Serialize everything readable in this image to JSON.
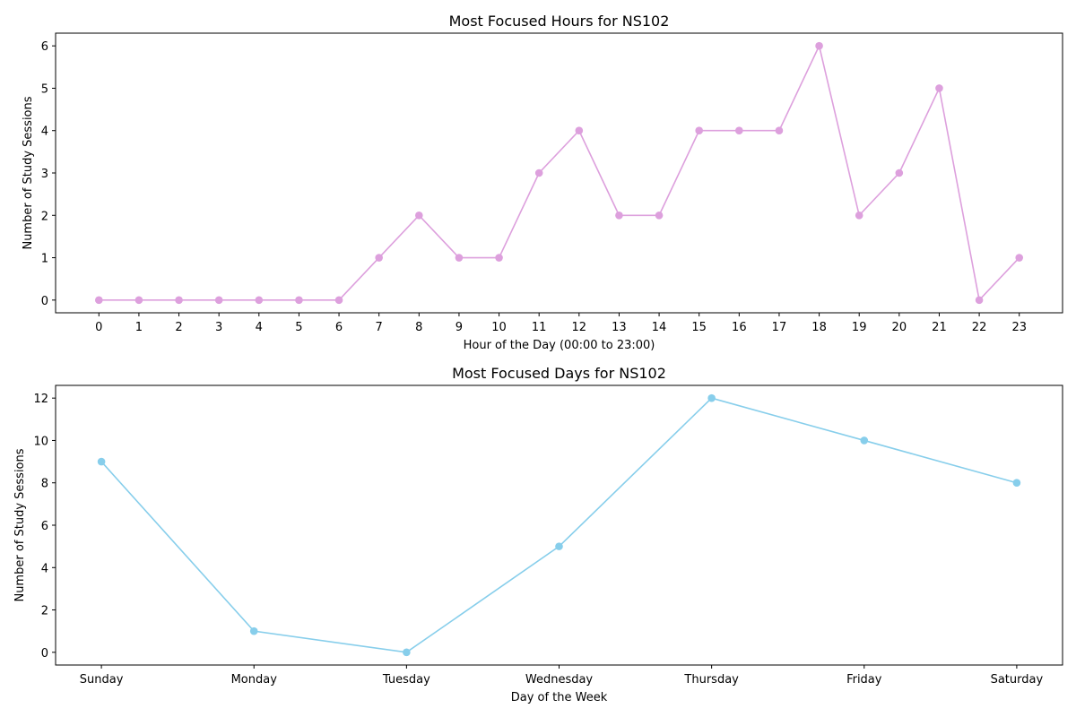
{
  "chart_data": [
    {
      "type": "line",
      "title": "Most Focused Hours for NS102",
      "xlabel": "Hour of the Day (00:00 to 23:00)",
      "ylabel": "Number of Study Sessions",
      "categories": [
        "0",
        "1",
        "2",
        "3",
        "4",
        "5",
        "6",
        "7",
        "8",
        "9",
        "10",
        "11",
        "12",
        "13",
        "14",
        "15",
        "16",
        "17",
        "18",
        "19",
        "20",
        "21",
        "22",
        "23"
      ],
      "series": [
        {
          "values": [
            0,
            0,
            0,
            0,
            0,
            0,
            0,
            1,
            2,
            1,
            1,
            3,
            4,
            2,
            2,
            4,
            4,
            4,
            6,
            2,
            3,
            5,
            0,
            1
          ],
          "color": "#dda0dd",
          "marker": "circle"
        }
      ],
      "yticks": [
        0,
        1,
        2,
        3,
        4,
        5,
        6
      ],
      "ylim": [
        -0.3,
        6.3
      ],
      "grid": false,
      "legend": "none"
    },
    {
      "type": "line",
      "title": "Most Focused Days for NS102",
      "xlabel": "Day of the Week",
      "ylabel": "Number of Study Sessions",
      "categories": [
        "Sunday",
        "Monday",
        "Tuesday",
        "Wednesday",
        "Thursday",
        "Friday",
        "Saturday"
      ],
      "series": [
        {
          "values": [
            9,
            1,
            0,
            5,
            12,
            10,
            8
          ],
          "color": "#87ceeb",
          "marker": "circle"
        }
      ],
      "yticks": [
        0,
        2,
        4,
        6,
        8,
        10,
        12
      ],
      "ylim": [
        -0.6,
        12.6
      ],
      "grid": false,
      "legend": "none"
    }
  ]
}
